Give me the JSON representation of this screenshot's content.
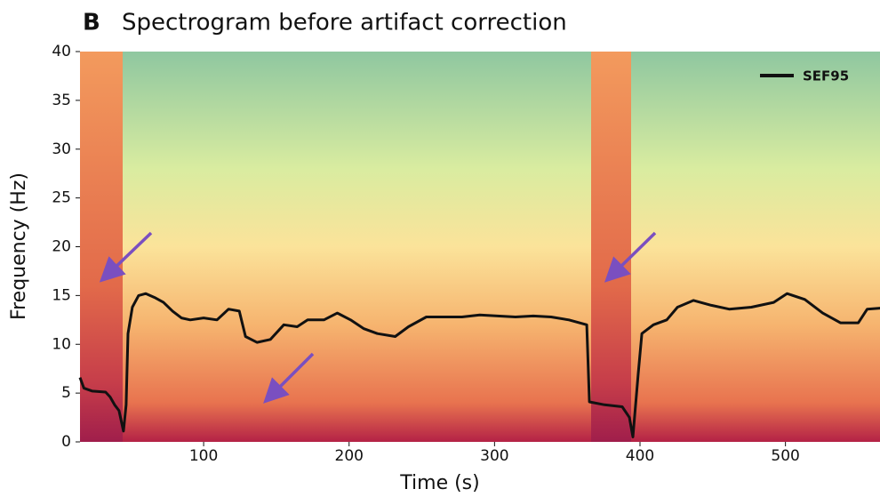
{
  "chart_data": {
    "type": "line",
    "panel_label": "B",
    "title": "Spectrogram before artifact correction",
    "x_label": "Time (s)",
    "y_label": "Frequency (Hz)",
    "xlim": [
      15,
      565
    ],
    "ylim": [
      0,
      40
    ],
    "xticks": [
      100,
      200,
      300,
      400,
      500
    ],
    "yticks": [
      0,
      5,
      10,
      15,
      20,
      25,
      30,
      35,
      40
    ],
    "legend": "upper right",
    "x": [
      15,
      17.7,
      23.5,
      32.6,
      35.7,
      38.8,
      41.8,
      44.9,
      46.7,
      48,
      51,
      55.3,
      60.2,
      66.3,
      72.4,
      78.6,
      84.7,
      90.8,
      100,
      109.2,
      117.1,
      124.5,
      128.8,
      136.7,
      145.9,
      155.1,
      164.3,
      171.5,
      182.7,
      191.9,
      201,
      210.2,
      219.4,
      231.7,
      240.8,
      253.1,
      265.3,
      277.6,
      289.8,
      302.1,
      314.4,
      326.6,
      338.9,
      351.1,
      363.4,
      365.2,
      375.6,
      387.8,
      392.7,
      395.1,
      398.8,
      401.3,
      409.2,
      418.4,
      425.8,
      436.8,
      449.1,
      461.3,
      476.6,
      491.9,
      501.1,
      513.3,
      525.6,
      537.8,
      550.1,
      556.2,
      565.5
    ],
    "series": [
      {
        "name": "SEF95",
        "color": "#111111",
        "values": [
          6.6,
          5.5,
          5.2,
          5.1,
          4.6,
          3.8,
          3.2,
          1.1,
          3.8,
          11.1,
          13.8,
          15,
          15.2,
          14.8,
          14.3,
          13.4,
          12.7,
          12.5,
          12.7,
          12.5,
          13.6,
          13.4,
          10.8,
          10.2,
          10.5,
          12,
          11.8,
          12.5,
          12.5,
          13.2,
          12.5,
          11.6,
          11.1,
          10.8,
          11.8,
          12.8,
          12.8,
          12.8,
          13,
          12.9,
          12.8,
          12.9,
          12.8,
          12.5,
          12,
          4.1,
          3.8,
          3.6,
          2.5,
          0.5,
          7,
          11.1,
          12,
          12.5,
          13.8,
          14.5,
          14,
          13.6,
          13.8,
          14.3,
          15.2,
          14.6,
          13.2,
          12.2,
          12.2,
          13.6,
          13.7
        ]
      }
    ]
  }
}
